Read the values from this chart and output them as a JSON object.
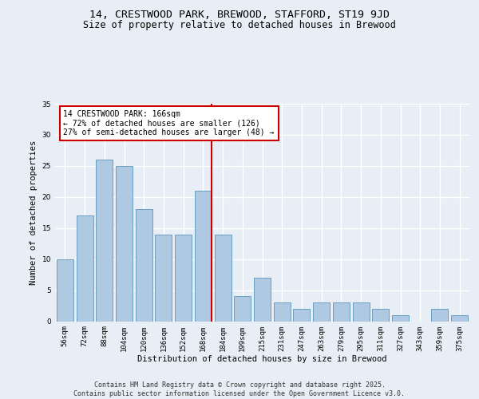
{
  "title": "14, CRESTWOOD PARK, BREWOOD, STAFFORD, ST19 9JD",
  "subtitle": "Size of property relative to detached houses in Brewood",
  "xlabel": "Distribution of detached houses by size in Brewood",
  "ylabel": "Number of detached properties",
  "categories": [
    "56sqm",
    "72sqm",
    "88sqm",
    "104sqm",
    "120sqm",
    "136sqm",
    "152sqm",
    "168sqm",
    "184sqm",
    "199sqm",
    "215sqm",
    "231sqm",
    "247sqm",
    "263sqm",
    "279sqm",
    "295sqm",
    "311sqm",
    "327sqm",
    "343sqm",
    "359sqm",
    "375sqm"
  ],
  "values": [
    10,
    17,
    26,
    25,
    18,
    14,
    14,
    21,
    14,
    4,
    7,
    3,
    2,
    3,
    3,
    3,
    2,
    1,
    0,
    2,
    1
  ],
  "bar_color": "#afc9e2",
  "bar_edge_color": "#6a9fc0",
  "vline_x_index": 7,
  "vline_color": "#cc0000",
  "annotation_text": "14 CRESTWOOD PARK: 166sqm\n← 72% of detached houses are smaller (126)\n27% of semi-detached houses are larger (48) →",
  "annotation_box_color": "#cc0000",
  "ylim": [
    0,
    35
  ],
  "yticks": [
    0,
    5,
    10,
    15,
    20,
    25,
    30,
    35
  ],
  "bg_color": "#e8eef5",
  "plot_bg_color": "#e8eef5",
  "grid_color": "#ffffff",
  "title_fontsize": 9.5,
  "subtitle_fontsize": 8.5,
  "axis_label_fontsize": 7.5,
  "tick_fontsize": 6.5,
  "annot_fontsize": 7.0,
  "footer_text": "Contains HM Land Registry data © Crown copyright and database right 2025.\nContains public sector information licensed under the Open Government Licence v3.0."
}
